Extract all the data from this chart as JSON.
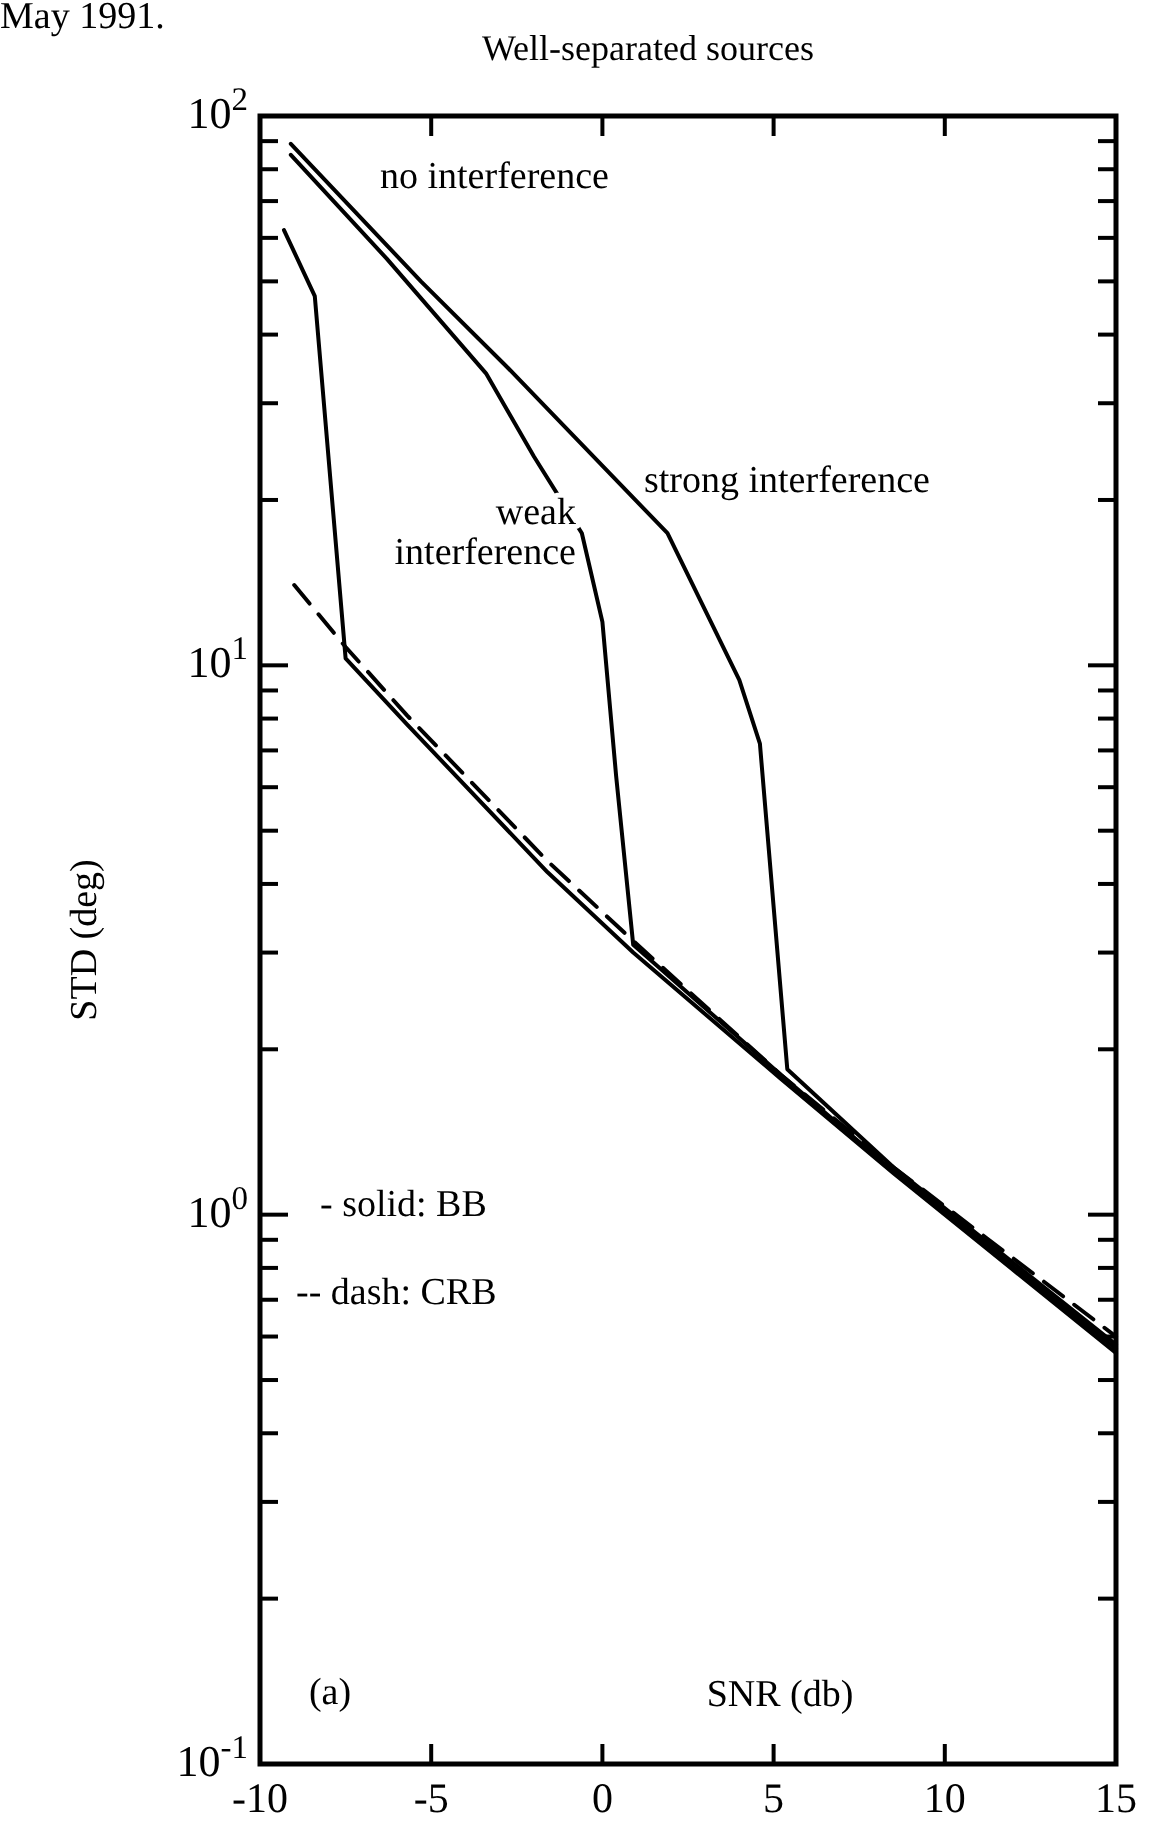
{
  "chart_data": {
    "type": "line",
    "title": "Well-separated sources",
    "xlabel": "SNR (db)",
    "ylabel": "STD (deg)",
    "log": "y",
    "grid": false,
    "marker": "none",
    "xlim": [
      -10,
      15
    ],
    "xticks": [
      -10,
      -5,
      0,
      5,
      10,
      15
    ],
    "ylim": [
      0.1,
      100
    ],
    "yticks": [
      {
        "value": 0.1,
        "label": "10$^{-1}$"
      },
      {
        "value": 0.2,
        "label": null
      },
      {
        "value": 0.3,
        "label": null
      },
      {
        "value": 0.4,
        "label": null
      },
      {
        "value": 0.5,
        "label": null
      },
      {
        "value": 0.6,
        "label": null
      },
      {
        "value": 0.7,
        "label": null
      },
      {
        "value": 0.8,
        "label": null
      },
      {
        "value": 0.9,
        "label": null
      },
      {
        "value": 1,
        "label": "10$^{0}$"
      },
      {
        "value": 2,
        "label": null
      },
      {
        "value": 3,
        "label": null
      },
      {
        "value": 4,
        "label": null
      },
      {
        "value": 5,
        "label": null
      },
      {
        "value": 6,
        "label": null
      },
      {
        "value": 7,
        "label": null
      },
      {
        "value": 8,
        "label": null
      },
      {
        "value": 9,
        "label": null
      },
      {
        "value": 10,
        "label": "10$^{1}$"
      },
      {
        "value": 20,
        "label": null
      },
      {
        "value": 30,
        "label": null
      },
      {
        "value": 40,
        "label": null
      },
      {
        "value": 50,
        "label": null
      },
      {
        "value": 60,
        "label": null
      },
      {
        "value": 70,
        "label": null
      },
      {
        "value": 80,
        "label": null
      },
      {
        "value": 90,
        "label": null
      },
      {
        "value": 100,
        "label": "10$^{2}$"
      }
    ],
    "annotations": [
      "May 1991.",
      "- solid: BB",
      "-- dash: CRB",
      "(a)"
    ],
    "series": [
      {
        "name": "no interference",
        "color": "#000000",
        "line_style": "solid",
        "x": [
          -9.3,
          -8.4,
          -7.5,
          -5.7,
          -1.6,
          0.9,
          5.2,
          8.5,
          15
        ],
        "values": [
          62,
          47,
          10.3,
          7.8,
          4.2,
          3.0,
          1.77,
          1.19,
          0.56
        ]
      },
      {
        "name": "strong interference",
        "color": "#000000",
        "line_style": "solid",
        "x": [
          -9.1,
          -5.3,
          -2.8,
          -0.8,
          1.9,
          4.0,
          4.6,
          5.4,
          8.5,
          15
        ],
        "values": [
          89,
          50,
          35,
          26,
          17.4,
          9.4,
          7.2,
          1.84,
          1.22,
          0.58
        ]
      },
      {
        "name": "weak interference",
        "color": "#000000",
        "line_style": "solid",
        "x": [
          -9.1,
          -6.3,
          -3.4,
          -2.0,
          -0.6,
          0,
          0.4,
          0.9,
          5.2,
          8.5,
          15
        ],
        "values": [
          85,
          55,
          34,
          24,
          17.4,
          12,
          6.3,
          3.1,
          1.8,
          1.2,
          0.57
        ]
      },
      {
        "color": "#000000",
        "line_style": "dashed",
        "x": [
          -9,
          -7.5,
          -5.7,
          -1.6,
          0.9,
          5.2,
          8.5,
          15
        ],
        "values": [
          14,
          10.8,
          8.1,
          4.4,
          3.15,
          1.8,
          1.22,
          0.6
        ]
      }
    ]
  }
}
